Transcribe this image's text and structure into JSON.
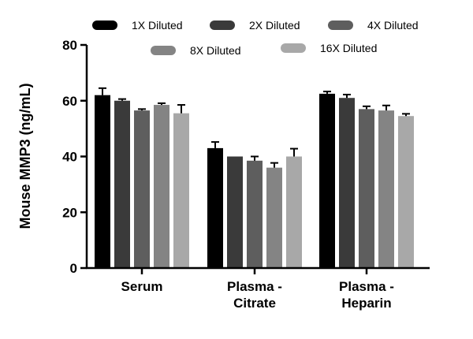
{
  "chart_data": {
    "type": "bar",
    "title": "",
    "xlabel": "",
    "ylabel": "Mouse MMP3 (ng/mL)",
    "ylim": [
      0,
      80
    ],
    "yticks": [
      "0",
      "20",
      "40",
      "60",
      "80"
    ],
    "categories": [
      [
        "Serum"
      ],
      [
        "Plasma -",
        "Citrate"
      ],
      [
        "Plasma -",
        "Heparin"
      ]
    ],
    "legend_position": "top",
    "series": [
      {
        "name": "1X Diluted",
        "color": "#000000",
        "values": [
          62.0,
          43.0,
          62.5
        ],
        "errors": [
          2.5,
          2.2,
          0.8
        ]
      },
      {
        "name": "2X Diluted",
        "color": "#3a3a3a",
        "values": [
          60.0,
          40.0,
          61.0
        ],
        "errors": [
          0.6,
          0.0,
          1.2
        ]
      },
      {
        "name": "4X Diluted",
        "color": "#5e5e5e",
        "values": [
          56.5,
          38.5,
          57.0
        ],
        "errors": [
          0.5,
          1.5,
          1.0
        ]
      },
      {
        "name": "8X Diluted",
        "color": "#848484",
        "values": [
          58.5,
          36.0,
          56.5
        ],
        "errors": [
          0.6,
          1.7,
          1.8
        ]
      },
      {
        "name": "16X Diluted",
        "color": "#a8a8a8",
        "values": [
          55.5,
          40.0,
          54.5
        ],
        "errors": [
          3.0,
          2.8,
          0.8
        ]
      }
    ]
  }
}
